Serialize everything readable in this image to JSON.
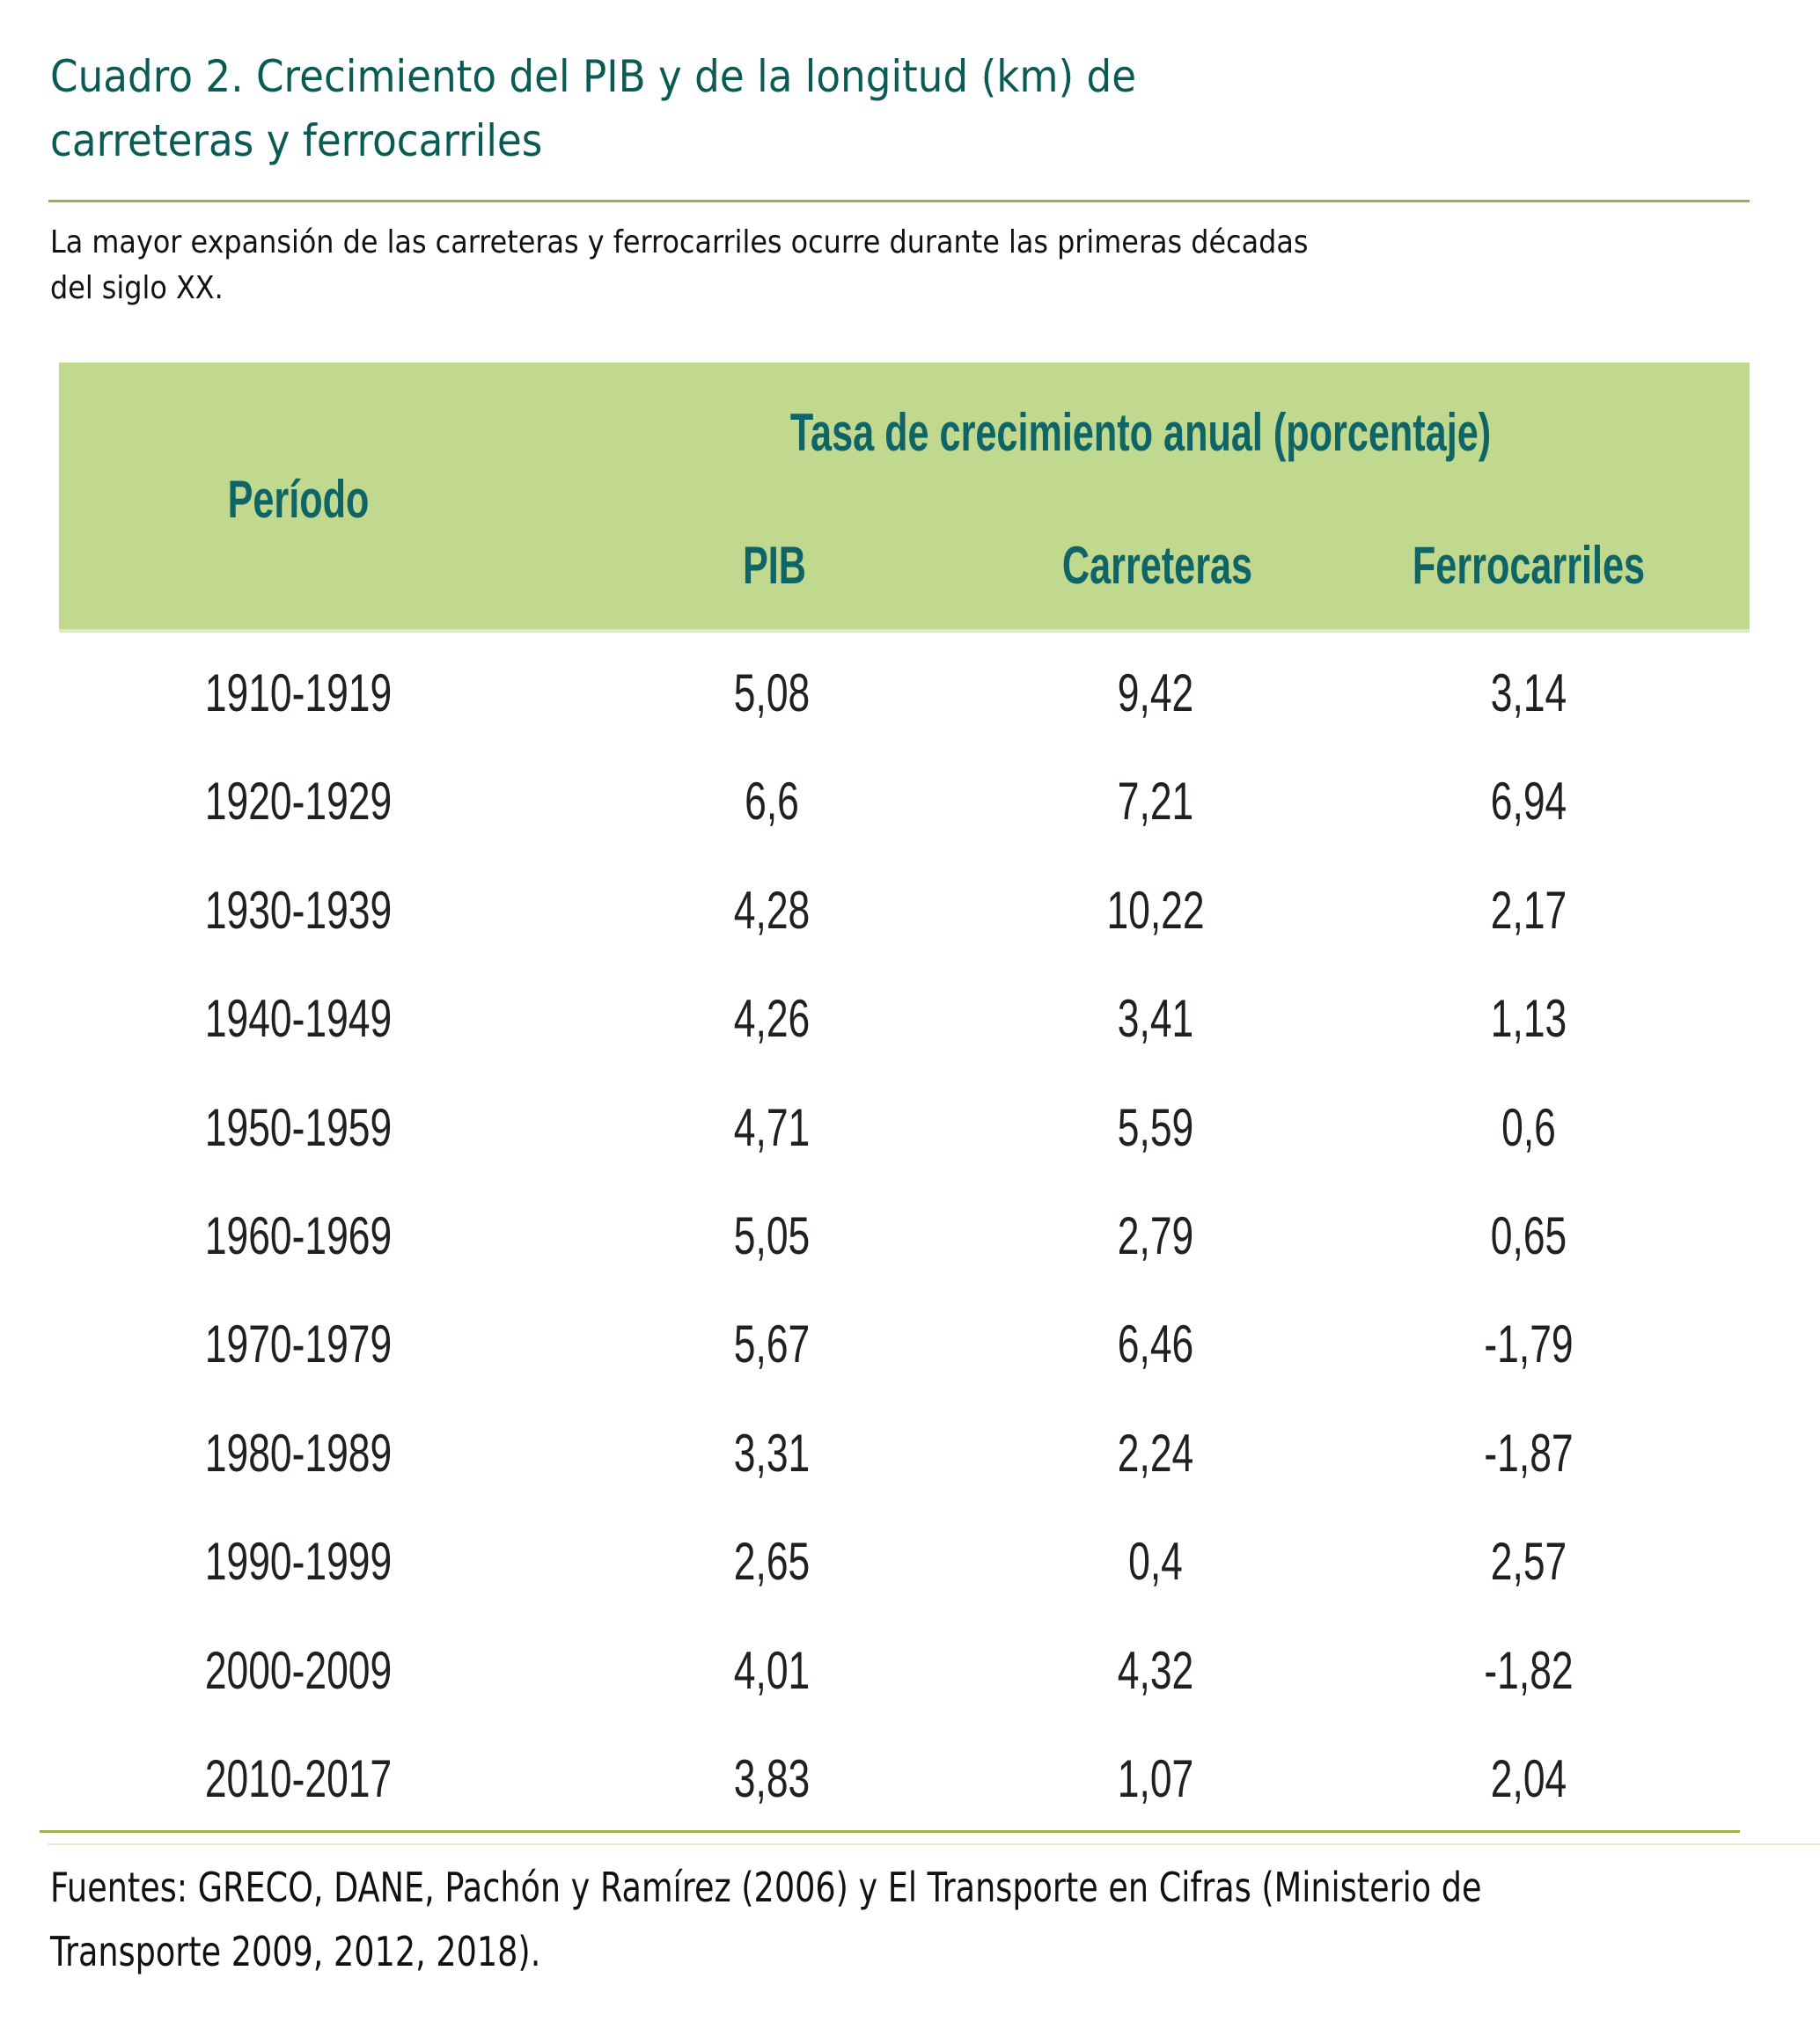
{
  "document": {
    "title_lines": [
      "Cuadro 2. Crecimiento del PIB y de la longitud (km) de",
      "carreteras y ferrocarriles"
    ],
    "subtitle_lines": [
      "La mayor expansión de las carreteras y ferrocarriles ocurre durante las primeras décadas",
      "del siglo XX."
    ],
    "footnote_lines": [
      "Fuentes: GRECO, DANE, Pachón y Ramírez (2006) y El Transporte en Cifras (Ministerio de",
      "Transporte 2009, 2012, 2018)."
    ]
  },
  "table": {
    "group_header": "Tasa de crecimiento anual (porcentaje)",
    "period_header": "Período",
    "columns": [
      "PIB",
      "Carreteras",
      "Ferrocarriles"
    ],
    "rows": [
      {
        "period": "1910-1919",
        "pib": "5,08",
        "carreteras": "9,42",
        "ferrocarriles": "3,14"
      },
      {
        "period": "1920-1929",
        "pib": "6,6",
        "carreteras": "7,21",
        "ferrocarriles": "6,94"
      },
      {
        "period": "1930-1939",
        "pib": "4,28",
        "carreteras": "10,22",
        "ferrocarriles": "2,17"
      },
      {
        "period": "1940-1949",
        "pib": "4,26",
        "carreteras": "3,41",
        "ferrocarriles": "1,13"
      },
      {
        "period": "1950-1959",
        "pib": "4,71",
        "carreteras": "5,59",
        "ferrocarriles": "0,6"
      },
      {
        "period": "1960-1969",
        "pib": "5,05",
        "carreteras": "2,79",
        "ferrocarriles": "0,65"
      },
      {
        "period": "1970-1979",
        "pib": "5,67",
        "carreteras": "6,46",
        "ferrocarriles": "-1,79"
      },
      {
        "period": "1980-1989",
        "pib": "3,31",
        "carreteras": "2,24",
        "ferrocarriles": "-1,87"
      },
      {
        "period": "1990-1999",
        "pib": "2,65",
        "carreteras": "0,4",
        "ferrocarriles": "2,57"
      },
      {
        "period": "2000-2009",
        "pib": "4,01",
        "carreteras": "4,32",
        "ferrocarriles": "-1,82"
      },
      {
        "period": "2010-2017",
        "pib": "3,83",
        "carreteras": "1,07",
        "ferrocarriles": "2,04"
      }
    ]
  },
  "colors": {
    "title": "#0B5B55",
    "header_background": "#C0D98E",
    "header_text": "#0E6466",
    "rule": "#9AB24A",
    "body_text": "#231F20"
  }
}
